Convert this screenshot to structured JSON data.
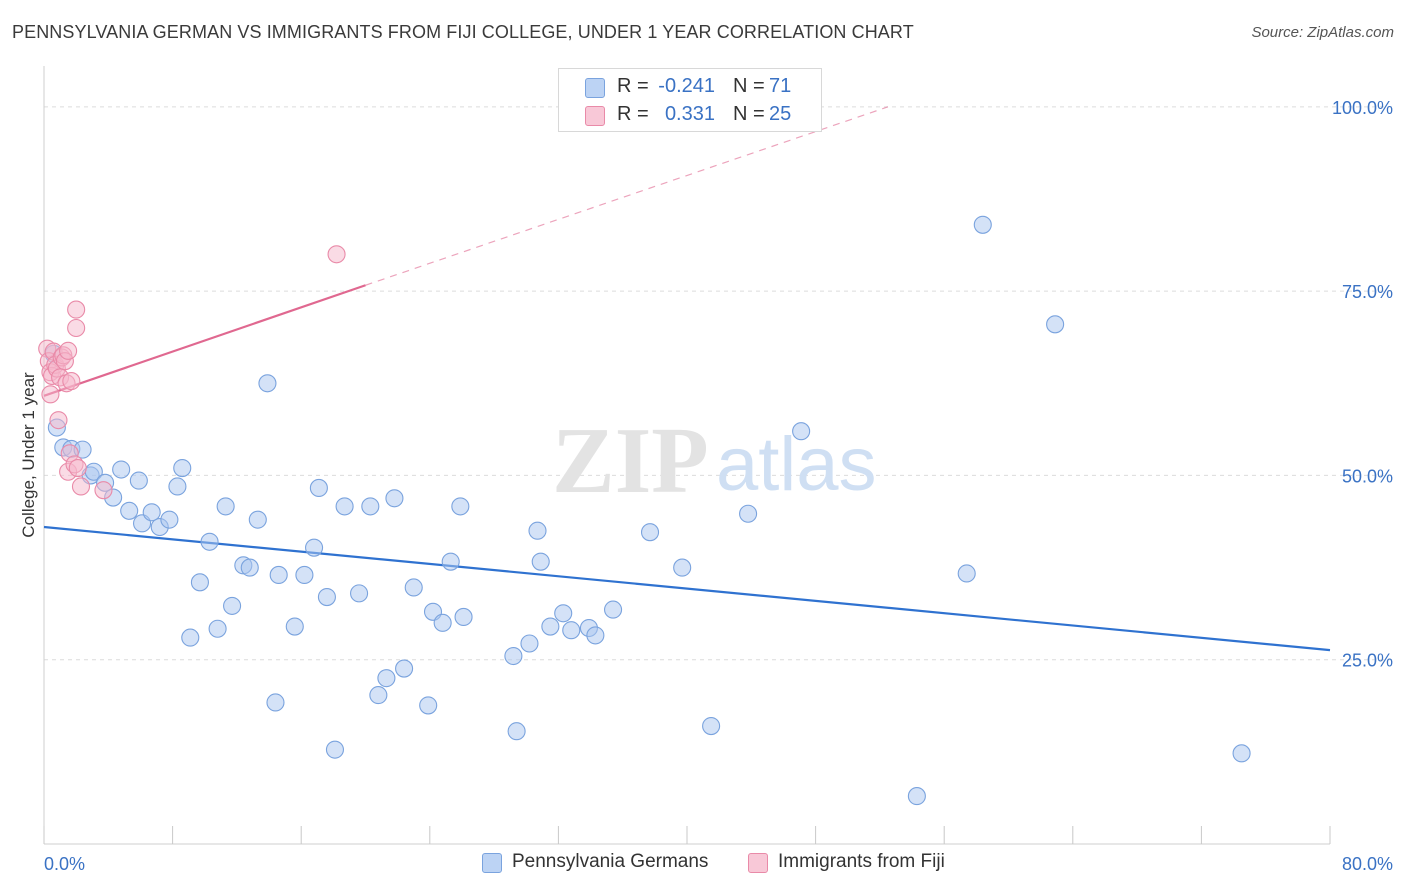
{
  "header": {
    "title": "PENNSYLVANIA GERMAN VS IMMIGRANTS FROM FIJI COLLEGE, UNDER 1 YEAR CORRELATION CHART",
    "source": "Source: ZipAtlas.com"
  },
  "legend": {
    "rows": [
      {
        "r_label": "R =",
        "r_value": "-0.241",
        "n_label": "N =",
        "n_value": "71"
      },
      {
        "r_label": "R =",
        "r_value": "0.331",
        "n_label": "N =",
        "n_value": "25"
      }
    ],
    "bottom": [
      "Pennsylvania Germans",
      "Immigrants from Fiji"
    ]
  },
  "watermark": {
    "zip": "ZIP",
    "atlas": "atlas"
  },
  "colors": {
    "blue_fill": "#a9c6f0",
    "blue_stroke": "#7aa3de",
    "blue_line": "#2f72d0",
    "pink_fill": "#f5b8cb",
    "pink_stroke": "#e98aa8",
    "pink_line": "#e06890",
    "tick_label": "#3a72c4",
    "grid": "#dcdcdc"
  },
  "chart_data": {
    "type": "scatter",
    "title": "PENNSYLVANIA GERMAN VS IMMIGRANTS FROM FIJI COLLEGE, UNDER 1 YEAR CORRELATION CHART",
    "xlabel": "",
    "ylabel": "College, Under 1 year",
    "xlim": [
      0,
      80
    ],
    "ylim": [
      0,
      105
    ],
    "x_tick_labels": [
      "0.0%",
      "80.0%"
    ],
    "y_ticks": [
      25,
      50,
      75,
      100
    ],
    "y_tick_labels": [
      "25.0%",
      "50.0%",
      "75.0%",
      "100.0%"
    ],
    "grid": true,
    "legend_position": "top-center",
    "series": [
      {
        "name": "Pennsylvania Germans",
        "color": "#a9c6f0",
        "r": -0.241,
        "n": 71,
        "trend": {
          "x": [
            0,
            80
          ],
          "y": [
            43.0,
            26.3
          ],
          "style": "solid"
        },
        "points": [
          [
            0.8,
            56.5
          ],
          [
            1.2,
            53.8
          ],
          [
            1.7,
            53.6
          ],
          [
            2.4,
            53.5
          ],
          [
            2.9,
            50.0
          ],
          [
            3.1,
            50.5
          ],
          [
            3.8,
            49.0
          ],
          [
            4.3,
            47.0
          ],
          [
            4.8,
            50.8
          ],
          [
            5.3,
            45.2
          ],
          [
            5.9,
            49.3
          ],
          [
            6.1,
            43.5
          ],
          [
            6.7,
            45.0
          ],
          [
            7.2,
            43.0
          ],
          [
            7.8,
            44.0
          ],
          [
            8.3,
            48.5
          ],
          [
            8.6,
            51.0
          ],
          [
            9.1,
            28.0
          ],
          [
            9.7,
            35.5
          ],
          [
            10.3,
            41.0
          ],
          [
            10.8,
            29.2
          ],
          [
            11.3,
            45.8
          ],
          [
            11.7,
            32.3
          ],
          [
            12.4,
            37.8
          ],
          [
            12.8,
            37.5
          ],
          [
            13.3,
            44.0
          ],
          [
            13.9,
            62.5
          ],
          [
            14.4,
            19.2
          ],
          [
            14.6,
            36.5
          ],
          [
            15.6,
            29.5
          ],
          [
            16.2,
            36.5
          ],
          [
            16.8,
            40.2
          ],
          [
            17.1,
            48.3
          ],
          [
            17.6,
            33.5
          ],
          [
            18.1,
            12.8
          ],
          [
            18.7,
            45.8
          ],
          [
            19.6,
            34.0
          ],
          [
            20.3,
            45.8
          ],
          [
            20.8,
            20.2
          ],
          [
            21.3,
            22.5
          ],
          [
            21.8,
            46.9
          ],
          [
            22.4,
            23.8
          ],
          [
            23.0,
            34.8
          ],
          [
            23.9,
            18.8
          ],
          [
            24.2,
            31.5
          ],
          [
            24.8,
            30.0
          ],
          [
            25.3,
            38.3
          ],
          [
            25.9,
            45.8
          ],
          [
            26.1,
            30.8
          ],
          [
            29.2,
            25.5
          ],
          [
            29.4,
            15.3
          ],
          [
            30.2,
            27.2
          ],
          [
            30.7,
            42.5
          ],
          [
            30.9,
            38.3
          ],
          [
            31.5,
            29.5
          ],
          [
            32.3,
            31.3
          ],
          [
            32.8,
            29.0
          ],
          [
            33.9,
            29.3
          ],
          [
            34.3,
            28.3
          ],
          [
            35.4,
            31.8
          ],
          [
            37.7,
            42.3
          ],
          [
            39.7,
            37.5
          ],
          [
            41.5,
            16.0
          ],
          [
            43.8,
            44.8
          ],
          [
            47.1,
            56.0
          ],
          [
            54.3,
            6.5
          ],
          [
            57.4,
            36.7
          ],
          [
            58.4,
            84.0
          ],
          [
            62.9,
            70.5
          ],
          [
            74.5,
            12.3
          ],
          [
            0.6,
            66.5
          ]
        ]
      },
      {
        "name": "Immigrants from Fiji",
        "color": "#f5b8cb",
        "r": 0.331,
        "n": 25,
        "trend": {
          "x": [
            0,
            20
          ],
          "y": [
            60.8,
            75.8
          ],
          "extended_to": [
            52.5,
            100
          ],
          "style": "solid-then-dashed"
        },
        "points": [
          [
            0.2,
            67.2
          ],
          [
            0.3,
            65.5
          ],
          [
            0.4,
            64.0
          ],
          [
            0.5,
            63.5
          ],
          [
            0.6,
            66.8
          ],
          [
            0.7,
            65.0
          ],
          [
            0.8,
            64.5
          ],
          [
            0.9,
            57.5
          ],
          [
            1.0,
            63.3
          ],
          [
            1.1,
            66.0
          ],
          [
            1.2,
            66.3
          ],
          [
            1.3,
            65.5
          ],
          [
            1.4,
            62.5
          ],
          [
            1.5,
            50.5
          ],
          [
            1.6,
            53.0
          ],
          [
            1.7,
            62.8
          ],
          [
            1.5,
            66.9
          ],
          [
            1.9,
            51.5
          ],
          [
            2.0,
            72.5
          ],
          [
            2.0,
            70.0
          ],
          [
            2.1,
            51.0
          ],
          [
            2.3,
            48.5
          ],
          [
            3.7,
            48.0
          ],
          [
            18.2,
            80.0
          ],
          [
            0.4,
            61.0
          ]
        ]
      }
    ]
  }
}
